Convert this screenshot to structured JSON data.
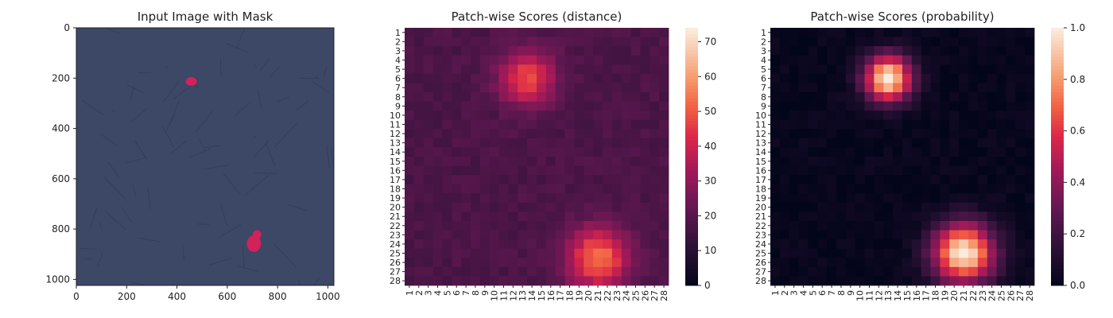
{
  "chart_data": [
    {
      "type": "image",
      "title": "Input Image with Mask",
      "xlim": [
        0,
        1024
      ],
      "ylim": [
        1024,
        0
      ],
      "x_ticks": [
        0,
        200,
        400,
        600,
        800,
        1000
      ],
      "y_ticks": [
        0,
        200,
        400,
        600,
        800,
        1000
      ],
      "background_color": "#3d4766",
      "mask_color": "#d4215a",
      "mask_regions": [
        {
          "cx": 457,
          "cy": 213,
          "rx": 22,
          "ry": 17
        },
        {
          "cx": 706,
          "cy": 858,
          "rx": 28,
          "ry": 33
        },
        {
          "cx": 718,
          "cy": 822,
          "rx": 17,
          "ry": 18
        }
      ]
    },
    {
      "type": "heatmap",
      "title": "Patch-wise Scores (distance)",
      "rows": 28,
      "cols": 28,
      "row_labels": [
        "1",
        "2",
        "3",
        "4",
        "5",
        "6",
        "7",
        "8",
        "9",
        "10",
        "11",
        "12",
        "13",
        "14",
        "15",
        "16",
        "17",
        "18",
        "19",
        "20",
        "21",
        "22",
        "23",
        "24",
        "25",
        "26",
        "27",
        "28"
      ],
      "col_labels": [
        "1",
        "2",
        "3",
        "4",
        "5",
        "6",
        "7",
        "8",
        "9",
        "10",
        "11",
        "12",
        "13",
        "14",
        "15",
        "16",
        "17",
        "18",
        "19",
        "20",
        "21",
        "22",
        "23",
        "24",
        "25",
        "26",
        "27",
        "28"
      ],
      "vmin": 0,
      "vmax": 74,
      "colorbar_ticks": [
        0,
        10,
        20,
        30,
        40,
        50,
        60,
        70
      ],
      "base_value": 18,
      "hotspots": [
        {
          "row": 6,
          "col": 13.5,
          "peak": 48,
          "sigma": 2.1
        },
        {
          "row": 25.5,
          "col": 21,
          "peak": 55,
          "sigma": 2.3
        }
      ]
    },
    {
      "type": "heatmap",
      "title": "Patch-wise Scores (probability)",
      "rows": 28,
      "cols": 28,
      "row_labels": [
        "1",
        "2",
        "3",
        "4",
        "5",
        "6",
        "7",
        "8",
        "9",
        "10",
        "11",
        "12",
        "13",
        "14",
        "15",
        "16",
        "17",
        "18",
        "19",
        "20",
        "21",
        "22",
        "23",
        "24",
        "25",
        "26",
        "27",
        "28"
      ],
      "col_labels": [
        "1",
        "2",
        "3",
        "4",
        "5",
        "6",
        "7",
        "8",
        "9",
        "10",
        "11",
        "12",
        "13",
        "14",
        "15",
        "16",
        "17",
        "18",
        "19",
        "20",
        "21",
        "22",
        "23",
        "24",
        "25",
        "26",
        "27",
        "28"
      ],
      "vmin": 0.0,
      "vmax": 1.0,
      "colorbar_ticks": [
        "0.0",
        "0.2",
        "0.4",
        "0.6",
        "0.8",
        "1.0"
      ],
      "base_value": 0.02,
      "hotspots": [
        {
          "row": 6,
          "col": 13,
          "peak": 1.0,
          "sigma": 1.8
        },
        {
          "row": 25,
          "col": 21,
          "peak": 1.0,
          "sigma": 2.3
        }
      ]
    }
  ]
}
